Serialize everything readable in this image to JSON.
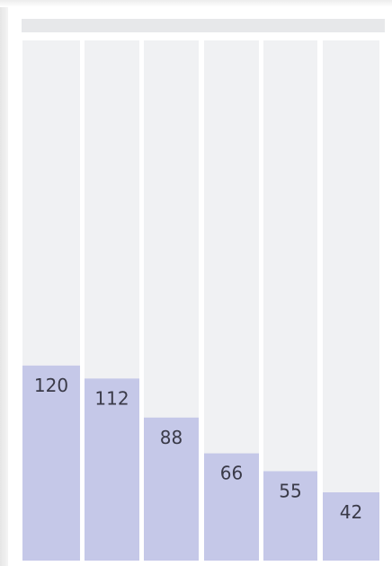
{
  "colors": {
    "track": "#f0f1f3",
    "bar": "#c5c8e8",
    "label": "#3a3a48"
  },
  "chart_data": {
    "type": "bar",
    "categories": [
      "",
      "",
      "",
      "",
      "",
      ""
    ],
    "values": [
      120,
      112,
      88,
      66,
      55,
      42
    ],
    "data_labels": [
      "120",
      "112",
      "88",
      "66",
      "55",
      "42"
    ],
    "title": "",
    "xlabel": "",
    "ylabel": "",
    "ylim": [
      0,
      320
    ],
    "grid": false,
    "legend": "none"
  }
}
